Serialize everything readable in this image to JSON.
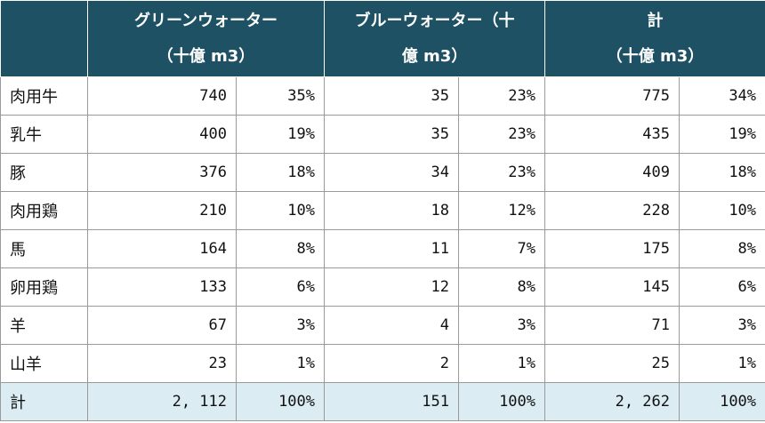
{
  "header": {
    "green": {
      "line1": "グリーンウォーター",
      "line2": "（十億 m3）"
    },
    "blue": {
      "line1": "ブルーウォーター（十",
      "line2": "億 m3）"
    },
    "total": {
      "line1": "計",
      "line2": "（十億 m3）"
    }
  },
  "rows": [
    {
      "label": "肉用牛",
      "green": "740",
      "green_pct": "35%",
      "blue": "35",
      "blue_pct": "23%",
      "total": "775",
      "total_pct": "34%"
    },
    {
      "label": "乳牛",
      "green": "400",
      "green_pct": "19%",
      "blue": "35",
      "blue_pct": "23%",
      "total": "435",
      "total_pct": "19%"
    },
    {
      "label": "豚",
      "green": "376",
      "green_pct": "18%",
      "blue": "34",
      "blue_pct": "23%",
      "total": "409",
      "total_pct": "18%"
    },
    {
      "label": "肉用鶏",
      "green": "210",
      "green_pct": "10%",
      "blue": "18",
      "blue_pct": "12%",
      "total": "228",
      "total_pct": "10%"
    },
    {
      "label": "馬",
      "green": "164",
      "green_pct": "8%",
      "blue": "11",
      "blue_pct": "7%",
      "total": "175",
      "total_pct": "8%"
    },
    {
      "label": "卵用鶏",
      "green": "133",
      "green_pct": "6%",
      "blue": "12",
      "blue_pct": "8%",
      "total": "145",
      "total_pct": "6%"
    },
    {
      "label": "羊",
      "green": "67",
      "green_pct": "3%",
      "blue": "4",
      "blue_pct": "3%",
      "total": "71",
      "total_pct": "3%"
    },
    {
      "label": "山羊",
      "green": "23",
      "green_pct": "1%",
      "blue": "2",
      "blue_pct": "1%",
      "total": "25",
      "total_pct": "1%"
    }
  ],
  "total_row": {
    "label": "計",
    "green": "2, 112",
    "green_pct": "100%",
    "blue": "151",
    "blue_pct": "100%",
    "total": "2, 262",
    "total_pct": "100%"
  },
  "colors": {
    "header_bg": "#1f5164",
    "total_row_bg": "#dbecf3"
  }
}
